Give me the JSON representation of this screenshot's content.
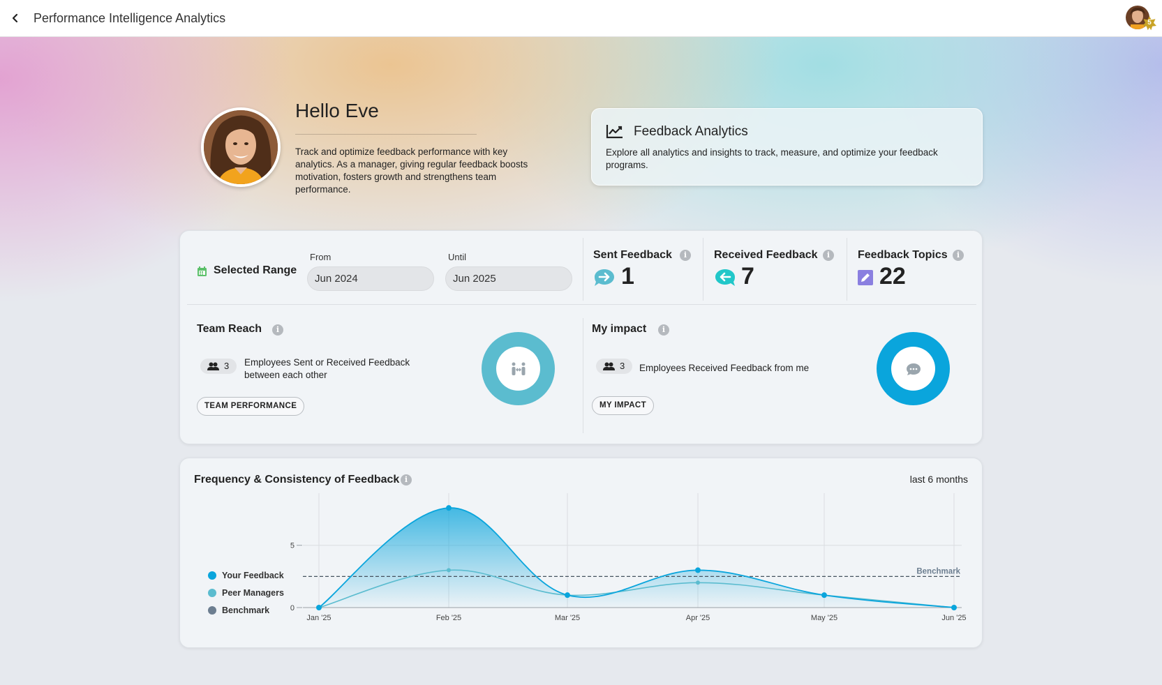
{
  "header": {
    "title": "Performance Intelligence Analytics",
    "badge_level": "5"
  },
  "hero": {
    "greeting": "Hello Eve",
    "description": "Track and optimize feedback performance with key analytics. As a manager, giving regular feedback boosts motivation, fosters growth and strengthens team performance."
  },
  "analytics_card": {
    "title": "Feedback Analytics",
    "description": "Explore all analytics and insights to track, measure, and optimize your feedback programs."
  },
  "range": {
    "label": "Selected Range",
    "from_label": "From",
    "from_value": "Jun 2024",
    "until_label": "Until",
    "until_value": "Jun 2025"
  },
  "stats": {
    "sent": {
      "label": "Sent Feedback",
      "value": "1"
    },
    "received": {
      "label": "Received Feedback",
      "value": "7"
    },
    "topics": {
      "label": "Feedback Topics",
      "value": "22"
    }
  },
  "team_reach": {
    "title": "Team Reach",
    "count": "3",
    "description": "Employees Sent or Received Feedback between each other",
    "button": "TEAM PERFORMANCE"
  },
  "my_impact": {
    "title": "My impact",
    "count": "3",
    "description": "Employees Received Feedback from me",
    "button": "MY IMPACT"
  },
  "colors": {
    "primary": "#0aa5dc",
    "teal": "#5bbccf",
    "benchmark": "#6c7e90",
    "topics": "#8a7fe0",
    "star": "#c9a326"
  },
  "chart_data": {
    "type": "area",
    "title": "Frequency & Consistency of Feedback",
    "range_label": "last 6 months",
    "categories": [
      "Jan '25",
      "Feb '25",
      "Mar '25",
      "Apr '25",
      "May '25",
      "Jun '25"
    ],
    "yticks": [
      0,
      5
    ],
    "ylim": [
      0,
      8.4
    ],
    "series": [
      {
        "name": "Your Feedback",
        "values": [
          0,
          8,
          1,
          3,
          1,
          0
        ]
      },
      {
        "name": "Peer Managers",
        "values": [
          0,
          3,
          1,
          2,
          1,
          0
        ]
      }
    ],
    "benchmark": {
      "name": "Benchmark",
      "value": 2.5,
      "label": "Benchmark"
    },
    "legend": [
      "Your Feedback",
      "Peer Managers",
      "Benchmark"
    ],
    "grid": true
  }
}
